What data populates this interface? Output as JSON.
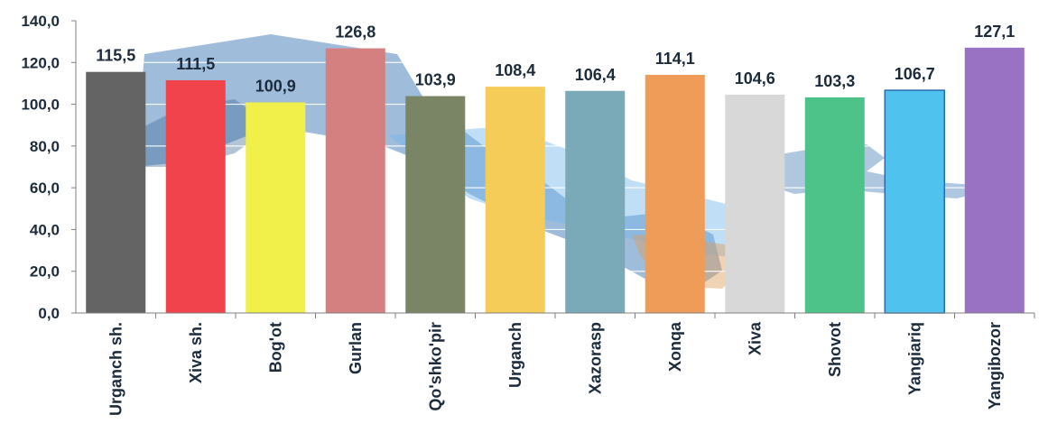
{
  "chart_data": {
    "type": "bar",
    "categories": [
      "Urganch sh.",
      "Xiva sh.",
      "Bog'ot",
      "Gurlan",
      "Qo'shko'pir",
      "Urganch",
      "Xazorasp",
      "Xonqa",
      "Xiva",
      "Shovot",
      "Yangiariq",
      "Yangibozor"
    ],
    "values": [
      115.5,
      111.5,
      100.9,
      126.8,
      103.9,
      108.4,
      106.4,
      114.1,
      104.6,
      103.3,
      106.7,
      127.1
    ],
    "value_labels": [
      "115,5",
      "111,5",
      "100,9",
      "126,8",
      "103,9",
      "108,4",
      "106,4",
      "114,1",
      "104,6",
      "103,3",
      "106,7",
      "127,1"
    ],
    "bar_colors": [
      "#646464",
      "#f0434c",
      "#f1f04a",
      "#d48080",
      "#7a8565",
      "#f5cc58",
      "#7aaab8",
      "#ef9c58",
      "#d8d8d8",
      "#4dc38a",
      "#4fc3ee",
      "#9a72c4"
    ],
    "ylim": [
      0,
      140
    ],
    "yticks": [
      0,
      20,
      40,
      60,
      80,
      100,
      120,
      140
    ],
    "ytick_labels": [
      "0,0",
      "20,0",
      "40,0",
      "60,0",
      "80,0",
      "100,0",
      "120,0",
      "140,0"
    ],
    "grid": true,
    "title": "",
    "xlabel": "",
    "ylabel": "",
    "background": "map-of-uzbekistan-watermark"
  }
}
